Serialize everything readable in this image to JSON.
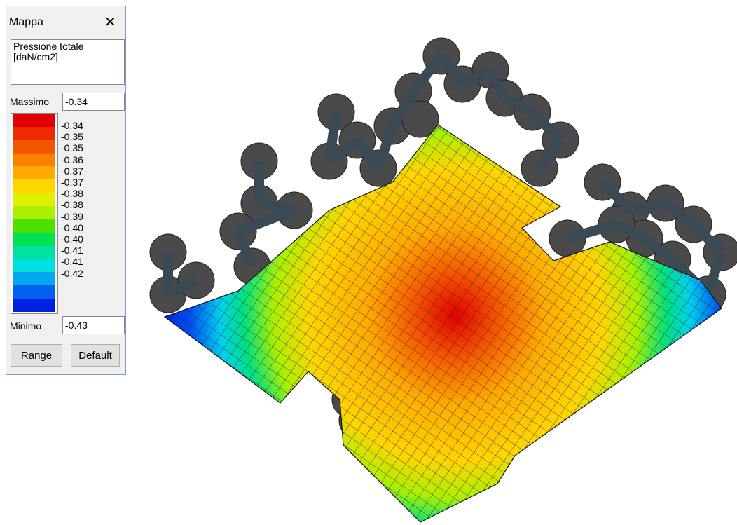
{
  "window": {
    "title": "Mappa"
  },
  "quantity": {
    "lines": [
      "Pressione totale",
      "[daN/cm2]"
    ]
  },
  "maximum": {
    "label": "Massimo",
    "value": "-0.34"
  },
  "legend": {
    "colors": [
      "#e30000",
      "#ee2a00",
      "#f55400",
      "#fa8000",
      "#ffaa00",
      "#ffd500",
      "#e0f000",
      "#aaf000",
      "#50e000",
      "#00e050",
      "#00e0a0",
      "#00e0e0",
      "#00a8f0",
      "#0060f0",
      "#0020e0"
    ],
    "labels": [
      "-0.34",
      "-0.35",
      "-0.35",
      "-0.36",
      "-0.37",
      "-0.37",
      "-0.38",
      "-0.38",
      "-0.39",
      "-0.40",
      "-0.40",
      "-0.41",
      "-0.41",
      "-0.42"
    ]
  },
  "minimum": {
    "label": "Minimo",
    "value": "-0.43"
  },
  "buttons": [
    "Range",
    "Default"
  ]
}
